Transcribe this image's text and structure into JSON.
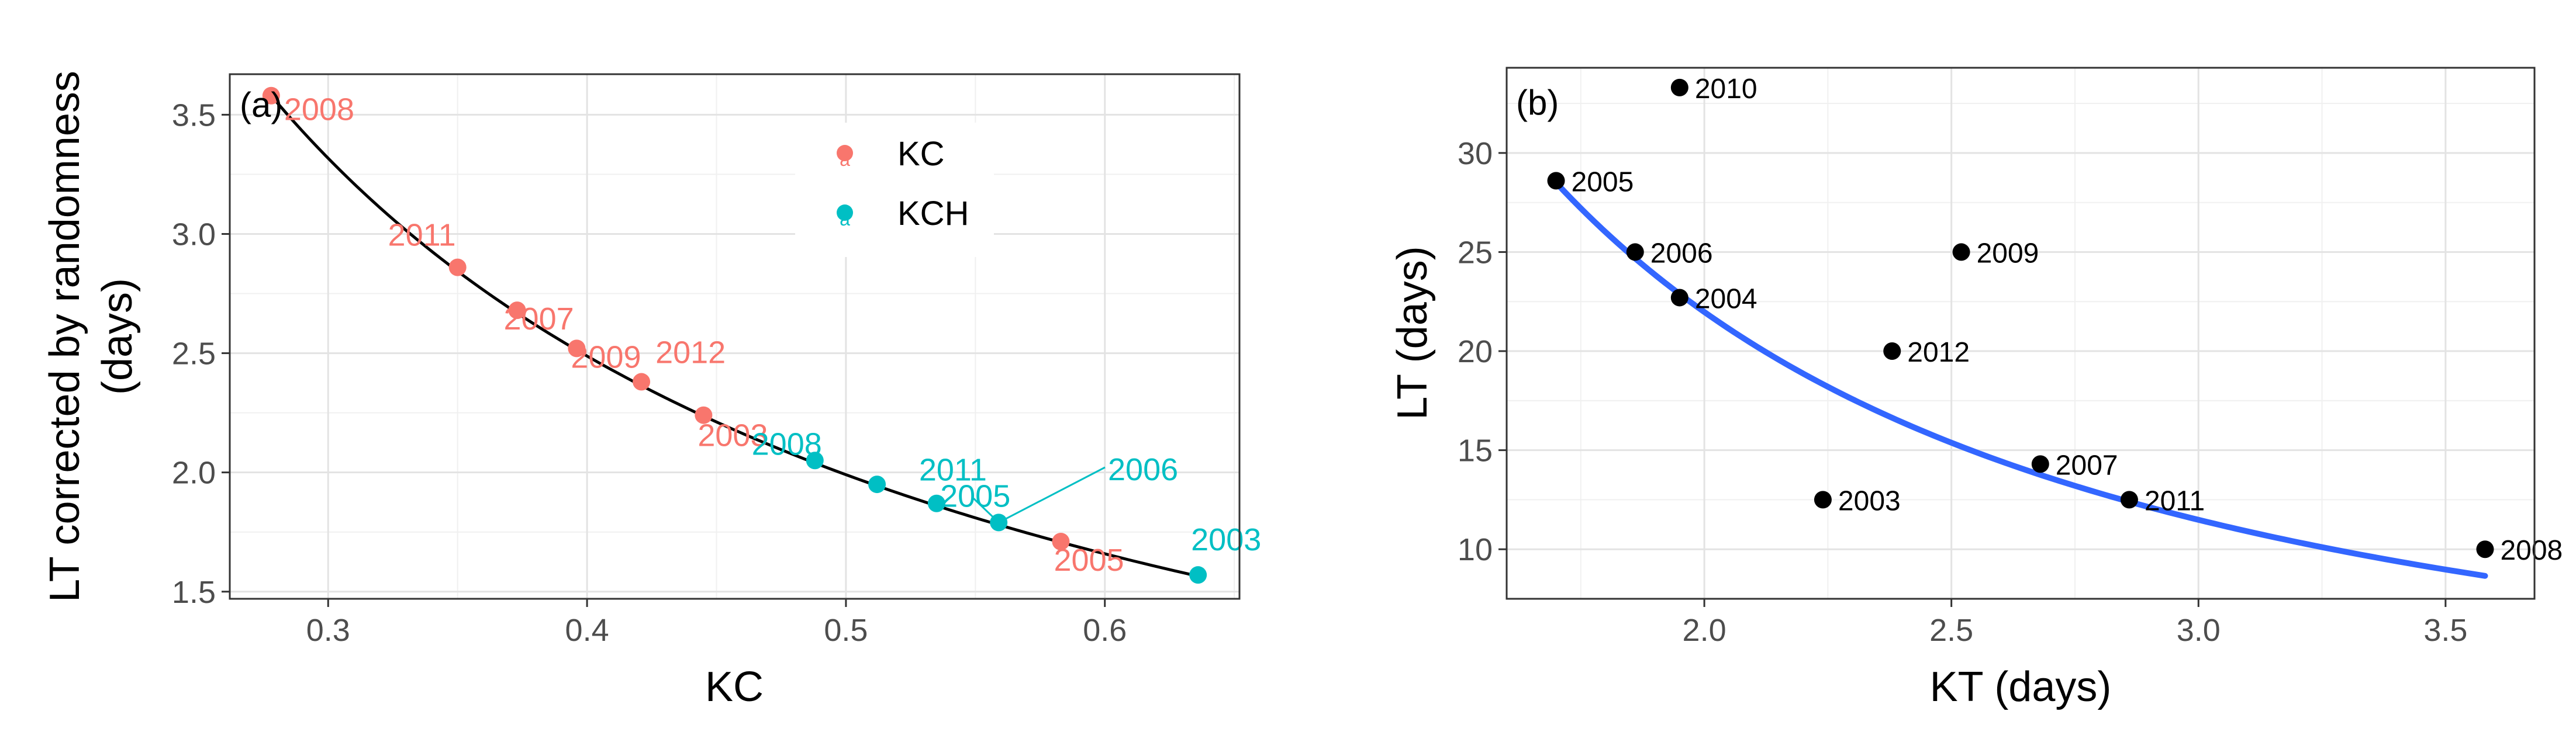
{
  "chart_data": [
    {
      "type": "scatter",
      "panel_label": "(a)",
      "xlabel": "KC",
      "ylabel_line1": "LT corrected by randomness",
      "ylabel_line2": "(days)",
      "xlim": [
        0.262,
        0.652
      ],
      "ylim": [
        1.47,
        3.67
      ],
      "xticks": [
        0.3,
        0.4,
        0.5,
        0.6
      ],
      "xtick_labels": [
        "0.3",
        "0.4",
        "0.5",
        "0.6"
      ],
      "yticks": [
        1.5,
        2.0,
        2.5,
        3.0,
        3.5
      ],
      "ytick_labels": [
        "1.5",
        "2.0",
        "2.5",
        "3.0",
        "3.5"
      ],
      "legend": {
        "position": "top-right",
        "entries": [
          "KC",
          "KCH"
        ]
      },
      "colors": {
        "KC": "#F8766D",
        "KCH": "#00BFC4",
        "fit": "#000000"
      },
      "series": [
        {
          "name": "KC",
          "points": [
            {
              "x": 0.278,
              "y": 3.58,
              "label": "2008"
            },
            {
              "x": 0.35,
              "y": 2.86,
              "label": "2011"
            },
            {
              "x": 0.373,
              "y": 2.68,
              "label": "2007"
            },
            {
              "x": 0.396,
              "y": 2.52,
              "label": "2009"
            },
            {
              "x": 0.421,
              "y": 2.38,
              "label": "2012"
            },
            {
              "x": 0.445,
              "y": 2.24,
              "label": "2003"
            },
            {
              "x": 0.583,
              "y": 1.71,
              "label": "2005"
            }
          ]
        },
        {
          "name": "KCH",
          "points": [
            {
              "x": 0.488,
              "y": 2.05,
              "label": "2008"
            },
            {
              "x": 0.512,
              "y": 1.95,
              "label": ""
            },
            {
              "x": 0.535,
              "y": 1.87,
              "label": "2011"
            },
            {
              "x": 0.559,
              "y": 1.79,
              "label": "2005"
            },
            {
              "x": 0.636,
              "y": 1.57,
              "label": "2003"
            }
          ]
        }
      ],
      "extra_labels": [
        {
          "series": "KCH",
          "text": "2006",
          "anchor": {
            "x": 0.559,
            "y": 1.79
          }
        }
      ],
      "fit_curve": {
        "type": "power",
        "formula": "y = 3.58 * (x / 0.278)^-1.0",
        "x_range": [
          0.278,
          0.636
        ]
      }
    },
    {
      "type": "scatter",
      "panel_label": "(b)",
      "xlabel": "KT (days)",
      "ylabel": "LT (days)",
      "xlim": [
        1.6,
        3.68
      ],
      "ylim": [
        7.5,
        34.3
      ],
      "xticks": [
        2.0,
        2.5,
        3.0,
        3.5
      ],
      "xtick_labels": [
        "2.0",
        "2.5",
        "3.0",
        "3.5"
      ],
      "yticks": [
        10,
        15,
        20,
        25,
        30
      ],
      "ytick_labels": [
        "10",
        "15",
        "20",
        "25",
        "30"
      ],
      "colors": {
        "points": "#000000",
        "fit": "#3366FF"
      },
      "points": [
        {
          "x": 1.7,
          "y": 28.6,
          "label": "2005"
        },
        {
          "x": 1.86,
          "y": 25.0,
          "label": "2006"
        },
        {
          "x": 1.95,
          "y": 22.7,
          "label": "2004"
        },
        {
          "x": 1.95,
          "y": 33.3,
          "label": "2010"
        },
        {
          "x": 2.24,
          "y": 12.5,
          "label": "2003"
        },
        {
          "x": 2.38,
          "y": 20.0,
          "label": "2012"
        },
        {
          "x": 2.52,
          "y": 25.0,
          "label": "2009"
        },
        {
          "x": 2.68,
          "y": 14.3,
          "label": "2007"
        },
        {
          "x": 2.86,
          "y": 12.5,
          "label": "2011"
        },
        {
          "x": 3.58,
          "y": 10.0,
          "label": "2008"
        }
      ],
      "fit_curve": {
        "type": "power",
        "formula": "y = 28.5 * (x / 1.70)^-1.6",
        "x_range": [
          1.7,
          3.58
        ]
      }
    }
  ]
}
